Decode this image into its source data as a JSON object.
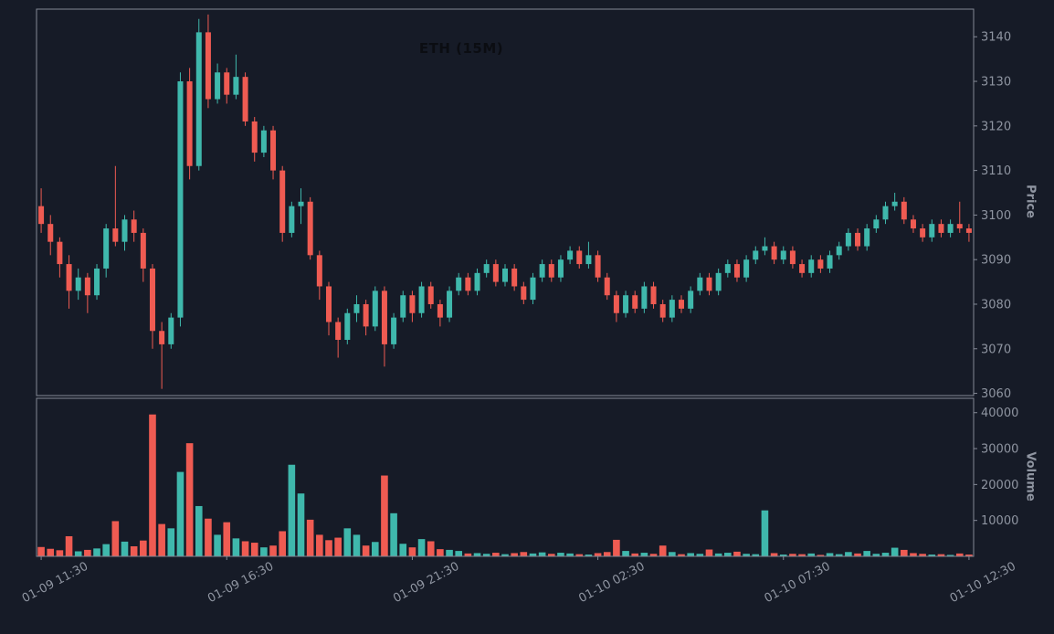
{
  "app": {
    "background": "#161b27"
  },
  "chart_data": {
    "type": "candlestick",
    "symbol": "ETH",
    "interval": "15M",
    "title": "ETH (15M)",
    "legend_position": "none",
    "grid": false,
    "price_axis": {
      "label": "Price",
      "side": "right",
      "ticks": [
        3060,
        3070,
        3080,
        3090,
        3100,
        3110,
        3120,
        3130,
        3140
      ],
      "range": [
        3059.5,
        3146.2
      ]
    },
    "volume_axis": {
      "label": "Volume",
      "side": "right",
      "ticks": [
        10000,
        20000,
        30000,
        40000
      ],
      "range": [
        0,
        44000
      ]
    },
    "x_axis": {
      "tick_labels": [
        "01-09 11:30",
        "01-09 16:30",
        "01-09 21:30",
        "01-10 02:30",
        "01-10 07:30",
        "01-10 12:30"
      ],
      "tick_indices": [
        0,
        20,
        40,
        60,
        80,
        100
      ]
    },
    "colors": {
      "up": "#3fb8ac",
      "down": "#ef5b52",
      "background": "#161b27",
      "axis_text": "#8f95a1",
      "spine": "#848996",
      "title_text": "#0b0d12"
    },
    "candles_format": [
      "open",
      "high",
      "low",
      "close",
      "volume"
    ],
    "candles": [
      [
        3102,
        3106,
        3096,
        3098,
        2600
      ],
      [
        3098,
        3100,
        3091,
        3094,
        2100
      ],
      [
        3094,
        3095,
        3086,
        3089,
        1700
      ],
      [
        3089,
        3091,
        3079,
        3083,
        5600
      ],
      [
        3083,
        3088,
        3081,
        3086,
        1400
      ],
      [
        3086,
        3087,
        3078,
        3082,
        1800
      ],
      [
        3082,
        3089,
        3081,
        3088,
        2200
      ],
      [
        3088,
        3098,
        3086,
        3097,
        3400
      ],
      [
        3097,
        3111,
        3093,
        3094,
        9800
      ],
      [
        3094,
        3100,
        3092,
        3099,
        4100
      ],
      [
        3099,
        3101,
        3094,
        3096,
        2800
      ],
      [
        3096,
        3097,
        3085,
        3088,
        4400
      ],
      [
        3088,
        3089,
        3070,
        3074,
        39500
      ],
      [
        3074,
        3076,
        3061,
        3071,
        9000
      ],
      [
        3071,
        3078,
        3070,
        3077,
        7800
      ],
      [
        3077,
        3132,
        3075,
        3130,
        23500
      ],
      [
        3130,
        3133,
        3108,
        3111,
        31500
      ],
      [
        3111,
        3144,
        3110,
        3141,
        14000
      ],
      [
        3141,
        3145,
        3124,
        3126,
        10500
      ],
      [
        3126,
        3134,
        3125,
        3132,
        6000
      ],
      [
        3132,
        3133,
        3125,
        3127,
        9500
      ],
      [
        3127,
        3136,
        3126,
        3131,
        5000
      ],
      [
        3131,
        3132,
        3120,
        3121,
        4200
      ],
      [
        3121,
        3122,
        3112,
        3114,
        3800
      ],
      [
        3114,
        3120,
        3113,
        3119,
        2500
      ],
      [
        3119,
        3120,
        3108,
        3110,
        3000
      ],
      [
        3110,
        3111,
        3094,
        3096,
        7000
      ],
      [
        3096,
        3103,
        3095,
        3102,
        25500
      ],
      [
        3102,
        3106,
        3098,
        3103,
        17500
      ],
      [
        3103,
        3104,
        3090,
        3091,
        10200
      ],
      [
        3091,
        3092,
        3081,
        3084,
        6000
      ],
      [
        3084,
        3085,
        3073,
        3076,
        4500
      ],
      [
        3076,
        3077,
        3068,
        3072,
        5200
      ],
      [
        3072,
        3079,
        3071,
        3078,
        7800
      ],
      [
        3078,
        3082,
        3076,
        3080,
        6000
      ],
      [
        3080,
        3081,
        3073,
        3075,
        3000
      ],
      [
        3075,
        3084,
        3074,
        3083,
        4000
      ],
      [
        3083,
        3084,
        3066,
        3071,
        22500
      ],
      [
        3071,
        3078,
        3070,
        3077,
        12000
      ],
      [
        3077,
        3083,
        3076,
        3082,
        3500
      ],
      [
        3082,
        3083,
        3076,
        3078,
        2500
      ],
      [
        3078,
        3085,
        3077,
        3084,
        4800
      ],
      [
        3084,
        3085,
        3079,
        3080,
        4200
      ],
      [
        3080,
        3081,
        3075,
        3077,
        2000
      ],
      [
        3077,
        3084,
        3076,
        3083,
        1800
      ],
      [
        3083,
        3087,
        3082,
        3086,
        1500
      ],
      [
        3086,
        3087,
        3082,
        3083,
        800
      ],
      [
        3083,
        3088,
        3082,
        3087,
        900
      ],
      [
        3087,
        3090,
        3086,
        3089,
        700
      ],
      [
        3089,
        3090,
        3084,
        3085,
        1000
      ],
      [
        3085,
        3089,
        3084,
        3088,
        600
      ],
      [
        3088,
        3089,
        3083,
        3084,
        900
      ],
      [
        3084,
        3085,
        3080,
        3081,
        1200
      ],
      [
        3081,
        3087,
        3080,
        3086,
        800
      ],
      [
        3086,
        3090,
        3085,
        3089,
        1100
      ],
      [
        3089,
        3090,
        3085,
        3086,
        700
      ],
      [
        3086,
        3091,
        3085,
        3090,
        1000
      ],
      [
        3090,
        3093,
        3089,
        3092,
        800
      ],
      [
        3092,
        3093,
        3088,
        3089,
        600
      ],
      [
        3089,
        3094,
        3088,
        3091,
        500
      ],
      [
        3091,
        3092,
        3085,
        3086,
        900
      ],
      [
        3086,
        3087,
        3081,
        3082,
        1200
      ],
      [
        3082,
        3083,
        3076,
        3078,
        4600
      ],
      [
        3078,
        3083,
        3077,
        3082,
        1500
      ],
      [
        3082,
        3083,
        3078,
        3079,
        800
      ],
      [
        3079,
        3085,
        3078,
        3084,
        1000
      ],
      [
        3084,
        3085,
        3079,
        3080,
        700
      ],
      [
        3080,
        3081,
        3076,
        3077,
        3000
      ],
      [
        3077,
        3082,
        3076,
        3081,
        1200
      ],
      [
        3081,
        3082,
        3078,
        3079,
        600
      ],
      [
        3079,
        3084,
        3078,
        3083,
        900
      ],
      [
        3083,
        3087,
        3082,
        3086,
        700
      ],
      [
        3086,
        3087,
        3082,
        3083,
        1900
      ],
      [
        3083,
        3088,
        3082,
        3087,
        800
      ],
      [
        3087,
        3090,
        3086,
        3089,
        1000
      ],
      [
        3089,
        3090,
        3085,
        3086,
        1300
      ],
      [
        3086,
        3091,
        3085,
        3090,
        700
      ],
      [
        3090,
        3093,
        3089,
        3092,
        600
      ],
      [
        3092,
        3095,
        3091,
        3093,
        12800
      ],
      [
        3093,
        3094,
        3089,
        3090,
        900
      ],
      [
        3090,
        3093,
        3089,
        3092,
        500
      ],
      [
        3092,
        3093,
        3088,
        3089,
        700
      ],
      [
        3089,
        3090,
        3086,
        3087,
        600
      ],
      [
        3087,
        3091,
        3086,
        3090,
        800
      ],
      [
        3090,
        3091,
        3087,
        3088,
        400
      ],
      [
        3088,
        3092,
        3087,
        3091,
        900
      ],
      [
        3091,
        3094,
        3090,
        3093,
        600
      ],
      [
        3093,
        3097,
        3092,
        3096,
        1200
      ],
      [
        3096,
        3097,
        3092,
        3093,
        800
      ],
      [
        3093,
        3098,
        3092,
        3097,
        1500
      ],
      [
        3097,
        3100,
        3096,
        3099,
        700
      ],
      [
        3099,
        3103,
        3098,
        3102,
        1000
      ],
      [
        3102,
        3105,
        3101,
        3103,
        2400
      ],
      [
        3103,
        3104,
        3098,
        3099,
        1800
      ],
      [
        3099,
        3100,
        3096,
        3097,
        900
      ],
      [
        3097,
        3098,
        3094,
        3095,
        700
      ],
      [
        3095,
        3099,
        3094,
        3098,
        500
      ],
      [
        3098,
        3099,
        3095,
        3096,
        600
      ],
      [
        3096,
        3099,
        3095,
        3098,
        400
      ],
      [
        3098,
        3103,
        3096,
        3097,
        800
      ],
      [
        3097,
        3098,
        3094,
        3096,
        500
      ]
    ]
  }
}
